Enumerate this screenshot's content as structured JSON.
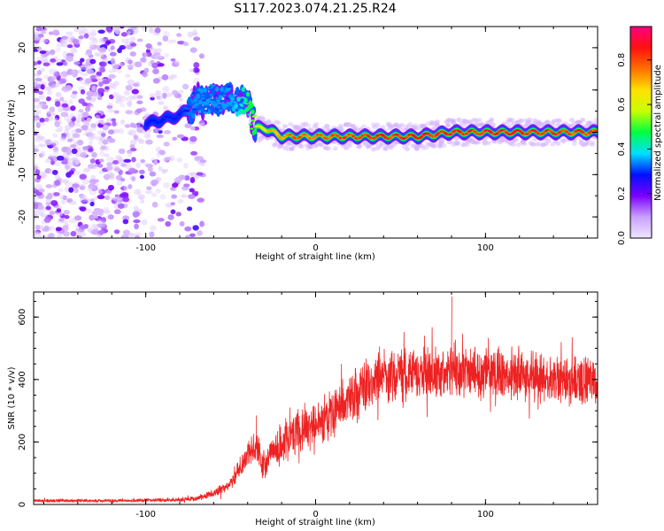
{
  "title": "S117.2023.074.21.25.R24",
  "chart_data": [
    {
      "type": "heatmap",
      "xlabel": "Height of straight line (km)",
      "ylabel": "Frequency (Hz)",
      "xlim": [
        -166,
        166
      ],
      "ylim": [
        -25,
        25
      ],
      "xticks": [
        -100,
        0,
        100
      ],
      "yticks": [
        -20,
        -10,
        0,
        10,
        20
      ],
      "colorbar": {
        "label": "Normalized spectral amplitude",
        "range": [
          0.0,
          0.95
        ],
        "ticks": [
          0.0,
          0.2,
          0.4,
          0.6,
          0.8
        ],
        "tick_labels": [
          "0.0",
          "0.2",
          "0.4",
          "0.6",
          "0.8"
        ],
        "colors": [
          "#f0e6ff",
          "#c9a0ff",
          "#7a00ff",
          "#0010ff",
          "#00e0ff",
          "#00ff40",
          "#c8ff00",
          "#ffe000",
          "#ff7000",
          "#ff1010",
          "#ff007f"
        ]
      },
      "ridge": {
        "x": [
          -166,
          -120,
          -100,
          -80,
          -70,
          -60,
          -50,
          -40,
          -35,
          -30,
          -25,
          -20,
          -10,
          0,
          20,
          40,
          60,
          80,
          100,
          120,
          140,
          166
        ],
        "frequency": [
          3,
          3,
          2,
          4,
          7,
          8,
          8,
          7,
          1,
          1,
          0,
          -1,
          -1,
          -1,
          -1,
          -1,
          -1,
          0,
          0,
          0,
          0,
          0
        ],
        "peak_amplitude": [
          0.2,
          0.25,
          0.3,
          0.3,
          0.35,
          0.35,
          0.35,
          0.45,
          0.6,
          0.7,
          0.75,
          0.8,
          0.85,
          0.85,
          0.85,
          0.9,
          0.9,
          0.9,
          0.9,
          0.9,
          0.9,
          0.85
        ]
      }
    },
    {
      "type": "line",
      "xlabel": "Height of straight line (km)",
      "ylabel": "SNR (10 * v/v)",
      "xlim": [
        -166,
        166
      ],
      "ylim": [
        0,
        680
      ],
      "xticks": [
        -100,
        0,
        100
      ],
      "yticks": [
        0,
        200,
        400,
        600
      ],
      "color": "#ee2222",
      "envelope": {
        "x": [
          -166,
          -120,
          -80,
          -70,
          -60,
          -50,
          -45,
          -40,
          -35,
          -30,
          -25,
          -20,
          -10,
          0,
          10,
          20,
          30,
          40,
          60,
          80,
          100,
          120,
          140,
          166
        ],
        "mean": [
          12,
          12,
          15,
          20,
          35,
          65,
          110,
          160,
          180,
          120,
          170,
          200,
          230,
          250,
          290,
          340,
          390,
          410,
          420,
          425,
          420,
          410,
          400,
          395
        ],
        "spread": [
          6,
          6,
          8,
          10,
          15,
          25,
          40,
          60,
          70,
          55,
          60,
          75,
          80,
          85,
          90,
          95,
          100,
          100,
          95,
          95,
          90,
          90,
          90,
          90
        ]
      },
      "annotations": [
        {
          "x": -35,
          "y": 285
        },
        {
          "x": 80,
          "y": 665
        }
      ]
    }
  ]
}
